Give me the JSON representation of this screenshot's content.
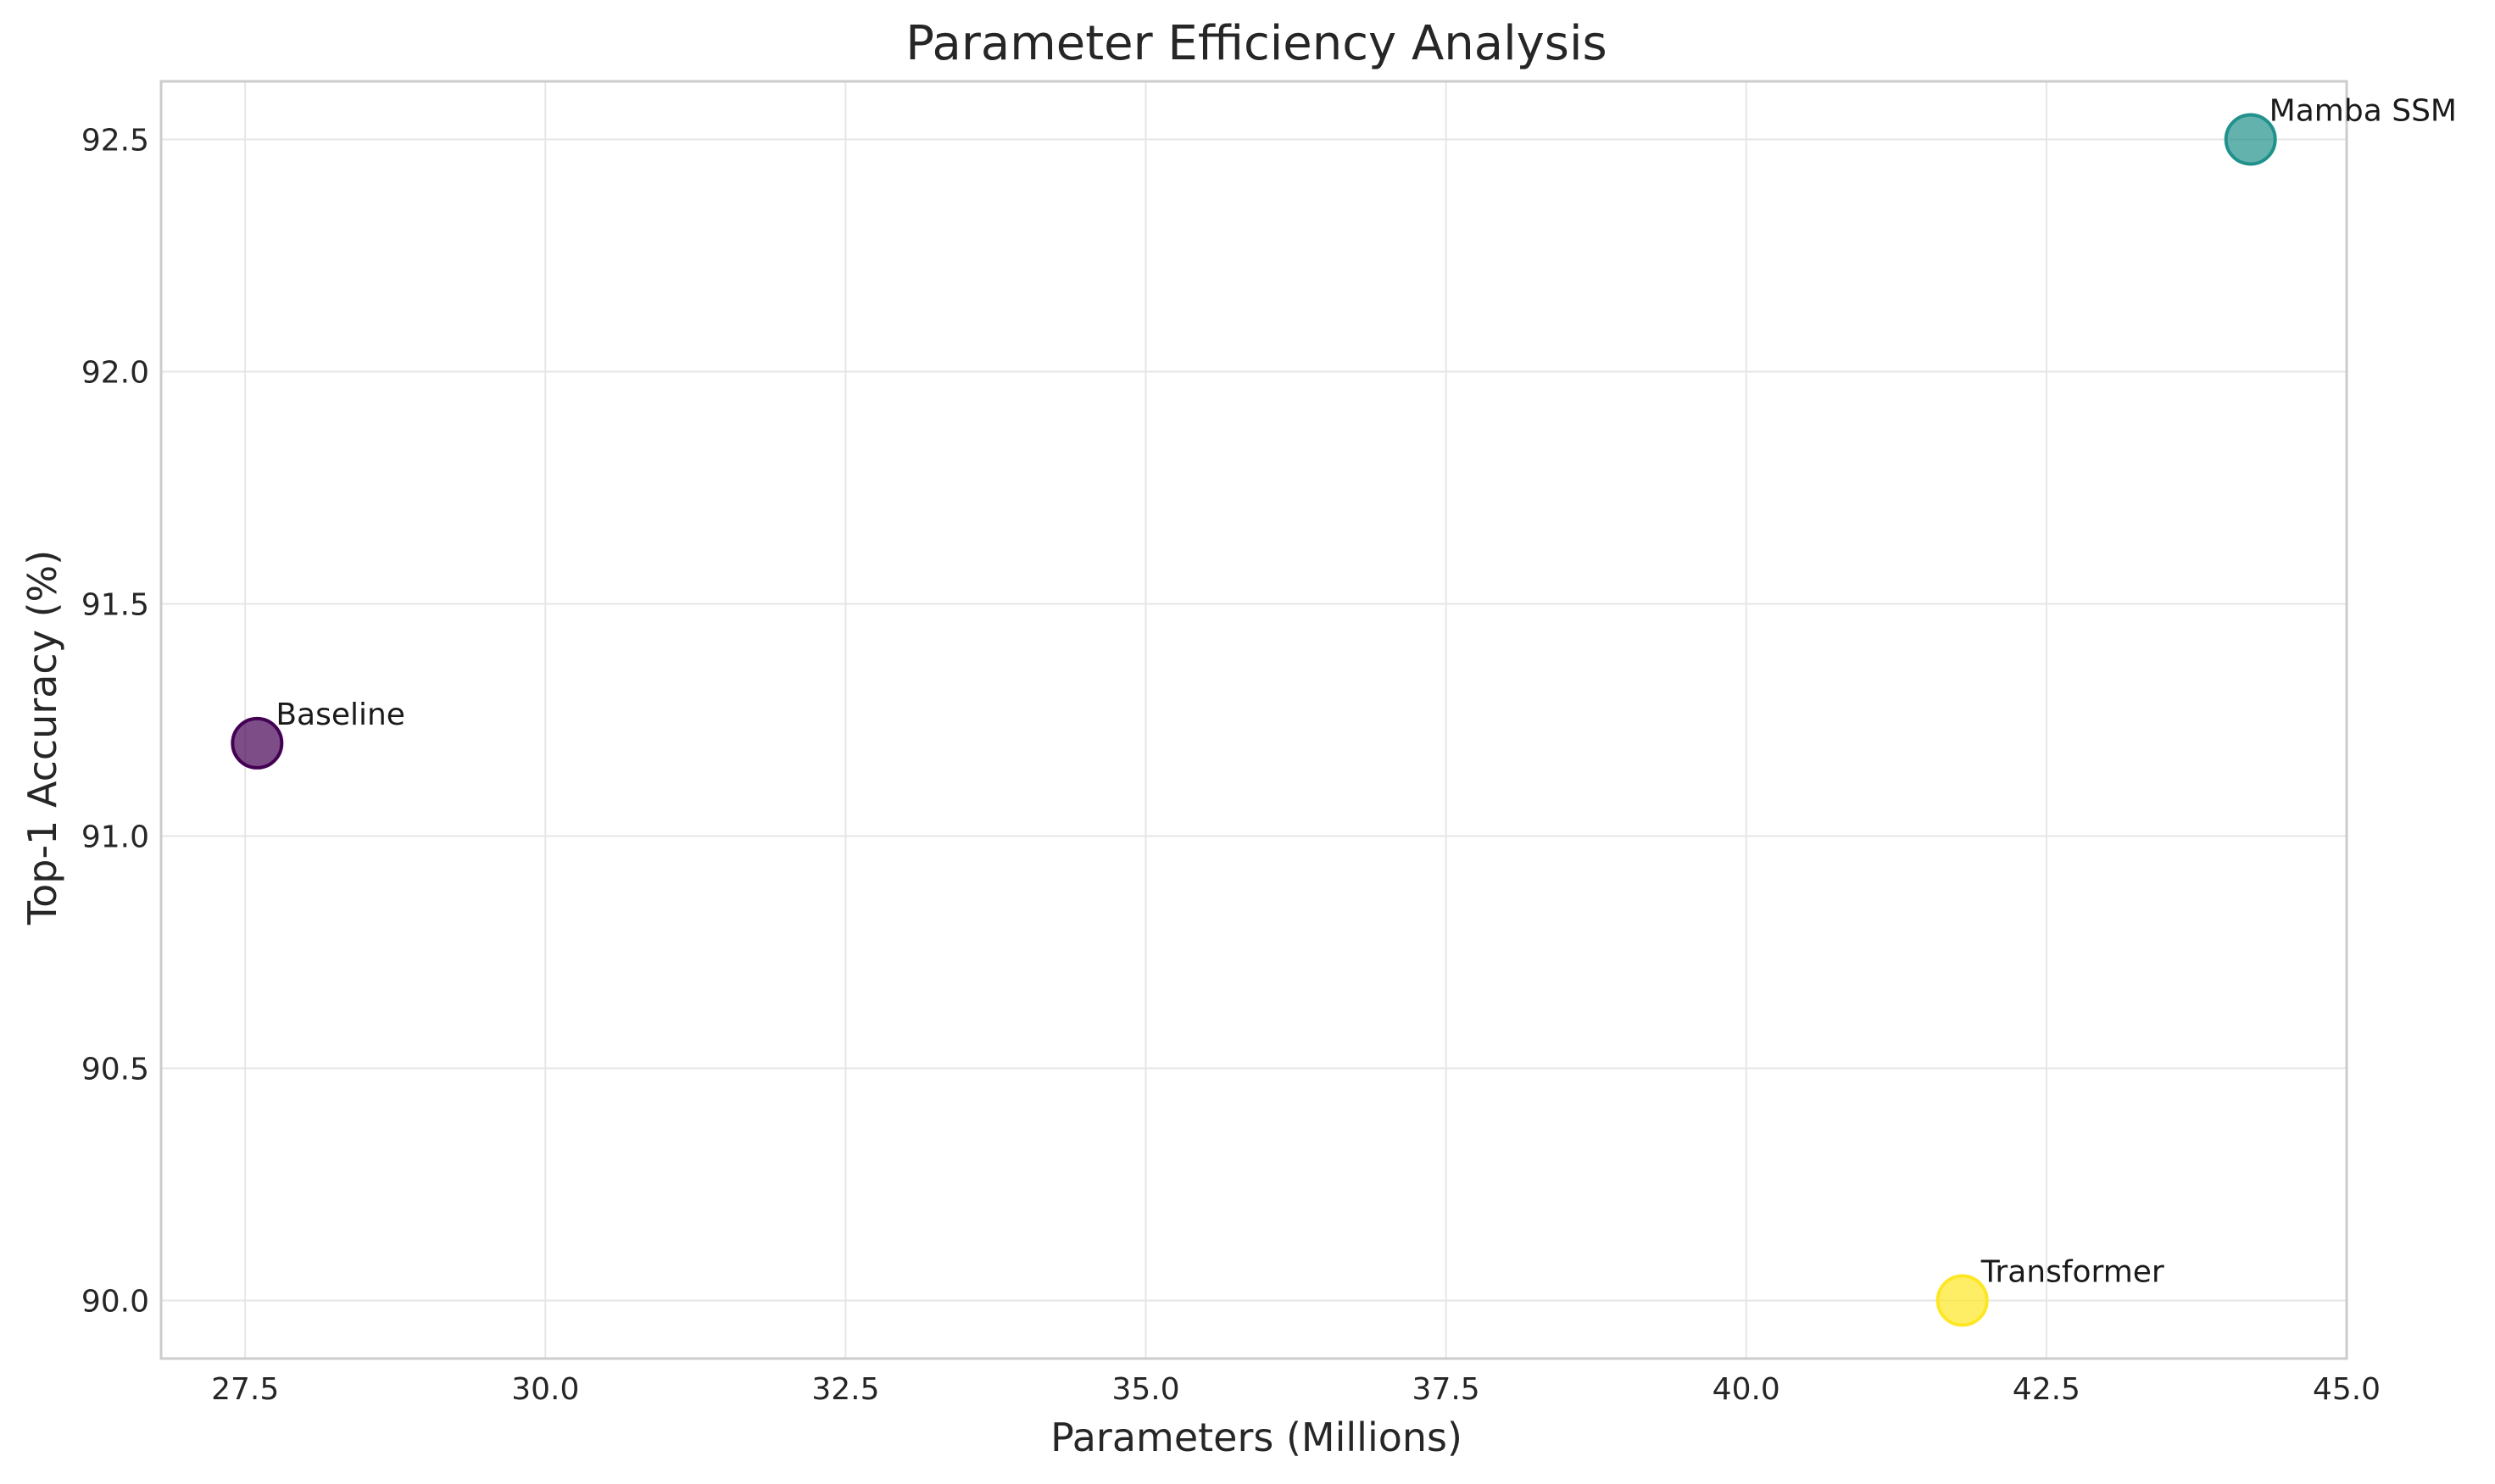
{
  "chart_data": {
    "type": "scatter",
    "title": "Parameter Efficiency Analysis",
    "xlabel": "Parameters (Millions)",
    "ylabel": "Top-1 Accuracy (%)",
    "xlim": [
      26.8,
      45.0
    ],
    "ylim": [
      89.875,
      92.625
    ],
    "x_ticks": [
      27.5,
      30.0,
      32.5,
      35.0,
      37.5,
      40.0,
      42.5,
      45.0
    ],
    "x_tick_labels": [
      "27.5",
      "30.0",
      "32.5",
      "35.0",
      "37.5",
      "40.0",
      "42.5",
      "45.0"
    ],
    "y_ticks": [
      90.0,
      90.5,
      91.0,
      91.5,
      92.0,
      92.5
    ],
    "y_tick_labels": [
      "90.0",
      "90.5",
      "91.0",
      "91.5",
      "92.0",
      "92.5"
    ],
    "grid": true,
    "points": [
      {
        "label": "Baseline",
        "x": 27.6,
        "y": 91.2,
        "color": "#440154"
      },
      {
        "label": "Mamba SSM",
        "x": 44.2,
        "y": 92.5,
        "color": "#21918c"
      },
      {
        "label": "Transformer",
        "x": 41.8,
        "y": 90.0,
        "color": "#fde725"
      }
    ]
  }
}
